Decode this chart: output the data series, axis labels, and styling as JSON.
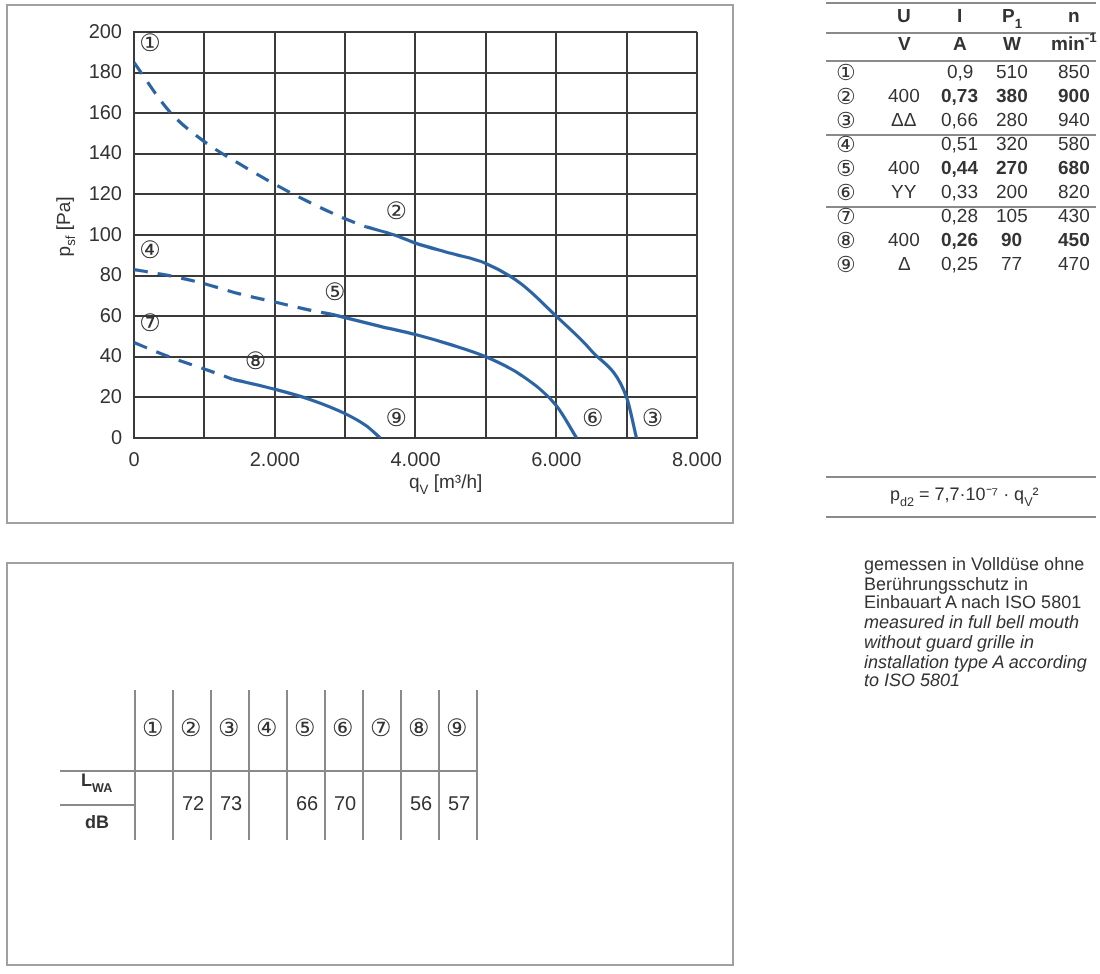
{
  "chart_data": [
    {
      "type": "line",
      "xlabel": "q$_{V}$ [m³/h]",
      "ylabel": "p$_{sf}$ [Pa]",
      "xlim": [
        0,
        8000
      ],
      "ylim": [
        0,
        200
      ],
      "xticks": [
        0,
        {
          "value": 1000,
          "label": null
        },
        {
          "value": 2000,
          "label": "2.000"
        },
        {
          "value": 3000,
          "label": null
        },
        {
          "value": 4000,
          "label": "4.000"
        },
        {
          "value": 5000,
          "label": null
        },
        {
          "value": 6000,
          "label": "6.000"
        },
        {
          "value": 7000,
          "label": null
        },
        {
          "value": 8000,
          "label": "8.000"
        }
      ],
      "yticks": [
        0,
        20,
        40,
        60,
        80,
        100,
        120,
        140,
        160,
        180,
        200
      ],
      "grid": true,
      "marker": "none",
      "line_style": "solid",
      "series": [
        {
          "color": "#2b63a3",
          "line_style": "dashed",
          "x": [
            0,
            500,
            1000,
            1500,
            2000,
            2500,
            3000,
            3300
          ],
          "values": [
            185,
            161,
            146,
            135,
            125,
            116,
            108,
            104
          ]
        },
        {
          "color": "#2b63a3",
          "x": [
            3300,
            3700,
            4000,
            4500,
            5000,
            5500,
            6000,
            6500,
            7000,
            7140
          ],
          "values": [
            104,
            100,
            96,
            91,
            86,
            76,
            60,
            43,
            20,
            0
          ]
        },
        {
          "color": "#2b63a3",
          "line_style": "dashed",
          "x": [
            0,
            500,
            1000,
            1500,
            2000,
            2500,
            2800
          ],
          "values": [
            83,
            80,
            76,
            71,
            67,
            63,
            61
          ]
        },
        {
          "color": "#2b63a3",
          "x": [
            2800,
            3500,
            4000,
            4500,
            5000,
            5500,
            6000,
            6290
          ],
          "values": [
            61,
            55,
            51,
            46,
            40,
            31,
            16,
            0
          ]
        },
        {
          "color": "#2b63a3",
          "line_style": "dashed",
          "x": [
            0,
            500,
            1000,
            1400
          ],
          "values": [
            47,
            40,
            34,
            29
          ]
        },
        {
          "color": "#2b63a3",
          "x": [
            1400,
            2000,
            2500,
            3000,
            3300,
            3500
          ],
          "values": [
            29,
            24,
            19,
            12,
            6,
            0
          ]
        }
      ],
      "annotations": [
        {
          "text": "①",
          "x": 0,
          "y": 185
        },
        {
          "text": "②",
          "x": 3500,
          "y": 102
        },
        {
          "text": "③",
          "x": 7140,
          "y": 0
        },
        {
          "text": "④",
          "x": 0,
          "y": 83
        },
        {
          "text": "⑤",
          "x": 2625,
          "y": 62
        },
        {
          "text": "⑥",
          "x": 6290,
          "y": 0
        },
        {
          "text": "⑦",
          "x": 0,
          "y": 47
        },
        {
          "text": "⑧",
          "x": 1500,
          "y": 28
        },
        {
          "text": "⑨",
          "x": 3500,
          "y": 0
        }
      ]
    },
    {
      "type": "other",
      "categories": [
        "U",
        "I",
        "P$_{1}$",
        "n"
      ],
      "y_categories": [
        null,
        "①",
        "②",
        "③",
        "④",
        "⑤",
        "⑥",
        "⑦",
        "⑧",
        "⑨"
      ],
      "cell_labels": [
        [
          "V",
          "A",
          "W",
          "min$^{-1}$"
        ],
        [
          null,
          "0,9",
          "510",
          "850"
        ],
        [
          "400",
          "0,73",
          "380",
          "900"
        ],
        [
          "ΔΔ",
          "0,66",
          "280",
          "940"
        ],
        [
          null,
          "0,51",
          "320",
          "580"
        ],
        [
          "400",
          "0,44",
          "270",
          "680"
        ],
        [
          "YY",
          "0,33",
          "200",
          "820"
        ],
        [
          null,
          "0,28",
          "105",
          "430"
        ],
        [
          "400",
          "0,26",
          "90",
          "450"
        ],
        [
          "Δ",
          "0,25",
          "77",
          "470"
        ]
      ],
      "annotations": [
        "p$_{d2}$ = 7,7·10⁻⁷ · q$_{V}$²"
      ]
    },
    {
      "type": "other",
      "annotations": [
        "gemessen in Volldüse ohne Berührungsschutz in Einbauart A nach ISO 5801",
        "measured in full bell mouth without guard grille in installation type A according to ISO 5801"
      ]
    },
    {
      "type": "other",
      "categories": [
        "①",
        "②",
        "③",
        "④",
        "⑤",
        "⑥",
        "⑦",
        "⑧",
        "⑨"
      ],
      "y_categories": [
        "L$_{WA}$",
        "dB"
      ],
      "cell_labels": [
        [
          null,
          "72",
          "73",
          null,
          "66",
          "70",
          null,
          "56",
          "57"
        ],
        [
          null,
          null,
          null,
          null,
          null,
          null,
          null,
          null,
          null
        ]
      ]
    }
  ]
}
